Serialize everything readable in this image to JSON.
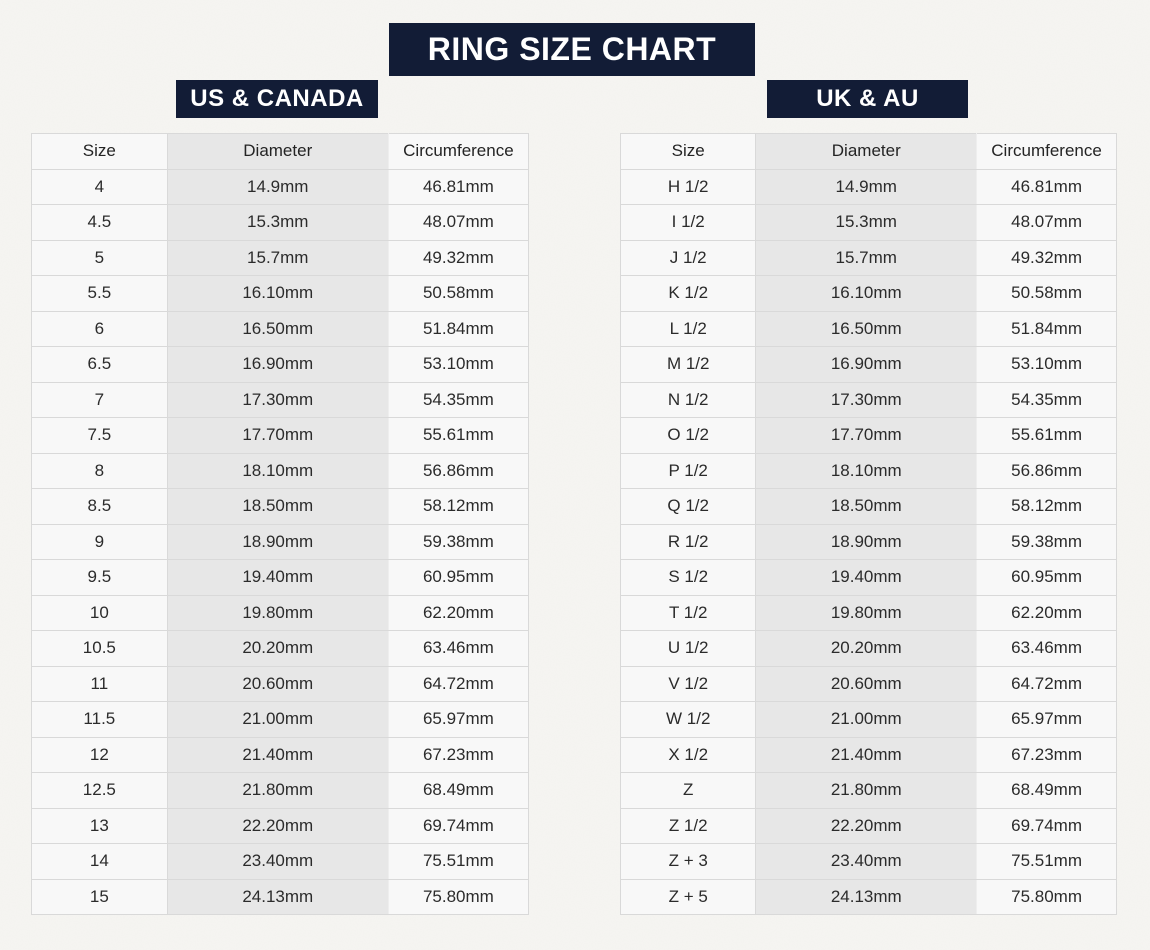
{
  "title_banner": "RING SIZE CHART",
  "colors": {
    "banner_navy": "#121c36",
    "banner_text": "#ffffff",
    "cell_background": "#f8f8f8",
    "shaded_column": "#e7e7e7",
    "cell_border": "#d9d9d9",
    "page_background": "#f6f5f2",
    "cell_text": "#2b2b2b"
  },
  "chart_data": [
    {
      "type": "table",
      "title": "US & CANADA",
      "columns": [
        "Size",
        "Diameter",
        "Circumference"
      ],
      "rows": [
        [
          "4",
          "14.9mm",
          "46.81mm"
        ],
        [
          "4.5",
          "15.3mm",
          "48.07mm"
        ],
        [
          "5",
          "15.7mm",
          "49.32mm"
        ],
        [
          "5.5",
          "16.10mm",
          "50.58mm"
        ],
        [
          "6",
          "16.50mm",
          "51.84mm"
        ],
        [
          "6.5",
          "16.90mm",
          "53.10mm"
        ],
        [
          "7",
          "17.30mm",
          "54.35mm"
        ],
        [
          "7.5",
          "17.70mm",
          "55.61mm"
        ],
        [
          "8",
          "18.10mm",
          "56.86mm"
        ],
        [
          "8.5",
          "18.50mm",
          "58.12mm"
        ],
        [
          "9",
          "18.90mm",
          "59.38mm"
        ],
        [
          "9.5",
          "19.40mm",
          "60.95mm"
        ],
        [
          "10",
          "19.80mm",
          "62.20mm"
        ],
        [
          "10.5",
          "20.20mm",
          "63.46mm"
        ],
        [
          "11",
          "20.60mm",
          "64.72mm"
        ],
        [
          "11.5",
          "21.00mm",
          "65.97mm"
        ],
        [
          "12",
          "21.40mm",
          "67.23mm"
        ],
        [
          "12.5",
          "21.80mm",
          "68.49mm"
        ],
        [
          "13",
          "22.20mm",
          "69.74mm"
        ],
        [
          "14",
          "23.40mm",
          "75.51mm"
        ],
        [
          "15",
          "24.13mm",
          "75.80mm"
        ]
      ]
    },
    {
      "type": "table",
      "title": "UK & AU",
      "columns": [
        "Size",
        "Diameter",
        "Circumference"
      ],
      "rows": [
        [
          "H 1/2",
          "14.9mm",
          "46.81mm"
        ],
        [
          "I 1/2",
          "15.3mm",
          "48.07mm"
        ],
        [
          "J 1/2",
          "15.7mm",
          "49.32mm"
        ],
        [
          "K 1/2",
          "16.10mm",
          "50.58mm"
        ],
        [
          "L 1/2",
          "16.50mm",
          "51.84mm"
        ],
        [
          "M 1/2",
          "16.90mm",
          "53.10mm"
        ],
        [
          "N 1/2",
          "17.30mm",
          "54.35mm"
        ],
        [
          "O 1/2",
          "17.70mm",
          "55.61mm"
        ],
        [
          "P 1/2",
          "18.10mm",
          "56.86mm"
        ],
        [
          "Q 1/2",
          "18.50mm",
          "58.12mm"
        ],
        [
          "R 1/2",
          "18.90mm",
          "59.38mm"
        ],
        [
          "S 1/2",
          "19.40mm",
          "60.95mm"
        ],
        [
          "T 1/2",
          "19.80mm",
          "62.20mm"
        ],
        [
          "U 1/2",
          "20.20mm",
          "63.46mm"
        ],
        [
          "V 1/2",
          "20.60mm",
          "64.72mm"
        ],
        [
          "W 1/2",
          "21.00mm",
          "65.97mm"
        ],
        [
          "X 1/2",
          "21.40mm",
          "67.23mm"
        ],
        [
          "Z",
          "21.80mm",
          "68.49mm"
        ],
        [
          "Z 1/2",
          "22.20mm",
          "69.74mm"
        ],
        [
          "Z + 3",
          "23.40mm",
          "75.51mm"
        ],
        [
          "Z + 5",
          "24.13mm",
          "75.80mm"
        ]
      ]
    }
  ]
}
